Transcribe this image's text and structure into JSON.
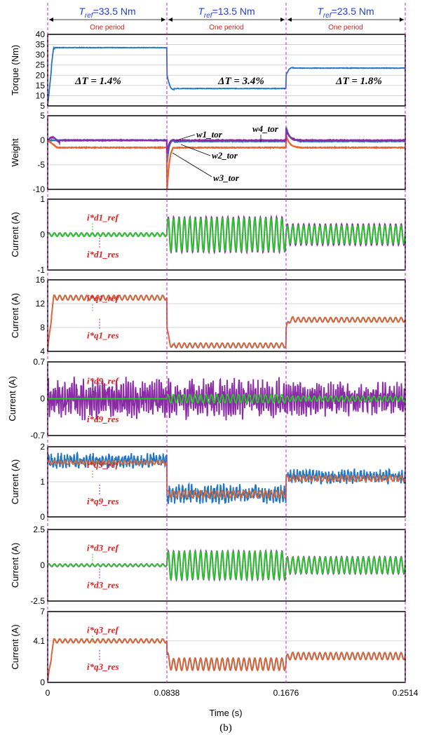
{
  "colors": {
    "blue": "#1f77c4",
    "orange": "#e8642a",
    "purple": "#8a2aa6",
    "green": "#22cc22",
    "header_blue": "#1f3fd8",
    "red": "#e02020",
    "boundary": "#d020d0",
    "grid": "#c8c8c8"
  },
  "header": {
    "segments": [
      {
        "text": "Tref=33.5 Nm",
        "sym": "T",
        "sub": "ref",
        "value": "=33.5 Nm",
        "period": "One period"
      },
      {
        "text": "Tref=13.5 Nm",
        "sym": "T",
        "sub": "ref",
        "value": "=13.5 Nm",
        "period": "One period"
      },
      {
        "text": "Tref=23.5 Nm",
        "sym": "T",
        "sub": "ref",
        "value": "=23.5 Nm",
        "period": "One period"
      }
    ]
  },
  "chart_data": [
    {
      "type": "line",
      "ylabel": "Torque (Nm)",
      "ylim": [
        5,
        40
      ],
      "yticks": [
        "5",
        "10",
        "15",
        "20",
        "25",
        "30",
        "35",
        "40"
      ],
      "series": [
        {
          "color": "blue",
          "levels": [
            33.5,
            13.5,
            23.5
          ]
        }
      ],
      "annotations": [
        "ΔT = 1.4%",
        "ΔT = 3.4%",
        "ΔT = 1.8%"
      ]
    },
    {
      "type": "line",
      "ylabel": "Weight",
      "ylim": [
        -10,
        5
      ],
      "yticks": [
        "-10",
        "-5",
        "0",
        "5"
      ],
      "series": [
        {
          "color": "blue",
          "levels": [
            0,
            -0.2,
            -0.3
          ]
        },
        {
          "color": "orange",
          "levels": [
            -1.5,
            -1.5,
            -1.5
          ]
        },
        {
          "color": "purple",
          "levels": [
            0,
            0,
            0
          ]
        }
      ],
      "annotations": [
        "w1_tor",
        "w4_tor",
        "w2_tor",
        "w3_tor"
      ]
    },
    {
      "type": "line",
      "ylabel": "Current (A)",
      "ylim": [
        -1,
        1
      ],
      "yticks": [
        "-1",
        "0",
        "1"
      ],
      "series": [
        {
          "color": "purple",
          "amplitude": [
            0.05,
            0.5,
            0.3
          ]
        },
        {
          "color": "green",
          "amplitude": [
            0.05,
            0.45,
            0.25
          ]
        }
      ],
      "annotations": [
        "i*d1_ref",
        "i*d1_res"
      ]
    },
    {
      "type": "line",
      "ylabel": "Current (A)",
      "ylim": [
        4,
        16
      ],
      "yticks": [
        "4",
        "8",
        "12",
        "16"
      ],
      "series": [
        {
          "color": "blue",
          "levels": [
            13,
            5,
            9.3
          ],
          "amplitude": [
            0.4,
            0.4,
            0.4
          ]
        },
        {
          "color": "orange",
          "levels": [
            13,
            5,
            9.3
          ],
          "amplitude": [
            0.4,
            0.4,
            0.4
          ]
        }
      ],
      "annotations": [
        "i*q1_ref",
        "i*q1_res"
      ]
    },
    {
      "type": "line",
      "ylabel": "Current (A)",
      "ylim": [
        -0.7,
        0.7
      ],
      "yticks": [
        "-0.7",
        "0",
        "0.7"
      ],
      "series": [
        {
          "color": "purple",
          "amplitude": [
            0.3,
            0.3,
            0.25
          ]
        },
        {
          "color": "green",
          "amplitude": [
            0.0,
            0.08,
            0.05
          ]
        }
      ],
      "annotations": [
        "i*d9_ref",
        "i*d9_res"
      ]
    },
    {
      "type": "line",
      "ylabel": "Current (A)",
      "ylim": [
        0,
        2
      ],
      "yticks": [
        "0",
        "1",
        "2"
      ],
      "series": [
        {
          "color": "blue",
          "levels": [
            1.6,
            0.65,
            1.15
          ],
          "amplitude": [
            0.2,
            0.25,
            0.2
          ]
        },
        {
          "color": "orange",
          "levels": [
            1.55,
            0.65,
            1.1
          ],
          "amplitude": [
            0.05,
            0.1,
            0.08
          ]
        }
      ],
      "annotations": [
        "i*q9_ref",
        "i*q9_res"
      ]
    },
    {
      "type": "line",
      "ylabel": "Current (A)",
      "ylim": [
        -2.5,
        2.5
      ],
      "yticks": [
        "-2.5",
        "0",
        "2.5"
      ],
      "series": [
        {
          "color": "purple",
          "amplitude": [
            0.1,
            1.0,
            0.6
          ]
        },
        {
          "color": "green",
          "amplitude": [
            0.08,
            0.95,
            0.55
          ]
        }
      ],
      "annotations": [
        "i*d3_ref",
        "i*d3_res"
      ]
    },
    {
      "type": "line",
      "ylabel": "Current (A)",
      "ylim": [
        0,
        7
      ],
      "yticks": [
        "0",
        "4.1",
        "7"
      ],
      "series": [
        {
          "color": "blue",
          "levels": [
            4.1,
            1.8,
            2.6
          ],
          "amplitude": [
            0.2,
            0.6,
            0.35
          ]
        },
        {
          "color": "orange",
          "levels": [
            4.1,
            1.8,
            2.6
          ],
          "amplitude": [
            0.2,
            0.6,
            0.35
          ]
        }
      ],
      "annotations": [
        "i*q3_ref",
        "i*q3_res"
      ]
    }
  ],
  "xaxis": {
    "label": "Time (s)",
    "ticks": [
      "0",
      "0.0838",
      "0.1676",
      "0.2514"
    ],
    "xlim": [
      0,
      0.2514
    ]
  },
  "caption": "(b)"
}
